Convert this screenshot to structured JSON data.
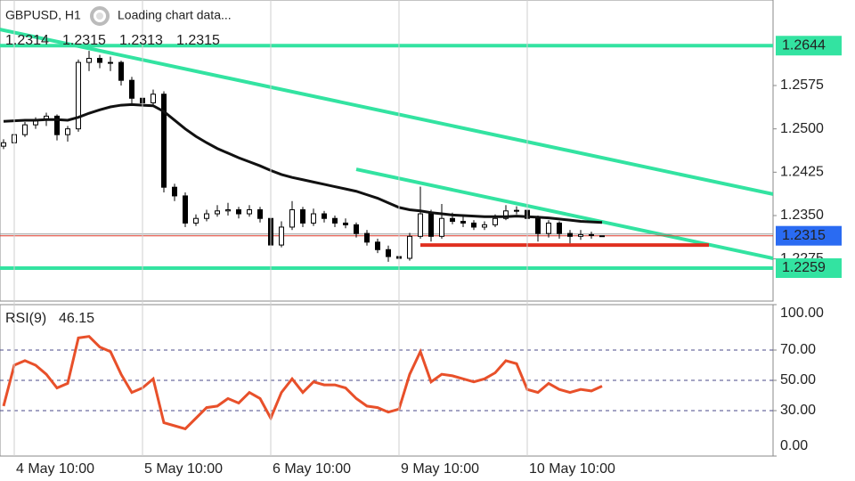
{
  "chart_data": {
    "type": "candlestick",
    "symbol": "GBPUSD, H1",
    "status": "Loading chart data...",
    "xlim": [
      -0.3333,
      72
    ],
    "xticks": [
      {
        "value": 1,
        "label": "4 May 10:00"
      },
      {
        "value": 13,
        "label": "5 May 10:00"
      },
      {
        "value": 25,
        "label": "6 May 10:00"
      },
      {
        "value": 37,
        "label": "9 May 10:00"
      },
      {
        "value": 49,
        "label": "10 May 10:00"
      }
    ],
    "ylim": [
      1.2202,
      1.2723
    ],
    "yticks": [
      1.2575,
      {
        "value": 1.25,
        "label": "1.2500"
      },
      1.2425,
      {
        "value": 1.235,
        "label": "1.2350"
      },
      1.2275
    ],
    "up_color": "#ffffff",
    "down_color": "#000000",
    "candles": [
      [
        1.247,
        1.2482,
        1.2465,
        1.2476
      ],
      [
        1.2476,
        1.2495,
        1.2472,
        1.249
      ],
      [
        1.249,
        1.2512,
        1.2486,
        1.2507
      ],
      [
        1.2507,
        1.252,
        1.25,
        1.2515
      ],
      [
        1.2515,
        1.2528,
        1.2505,
        1.2522
      ],
      [
        1.2522,
        1.2525,
        1.248,
        1.249
      ],
      [
        1.249,
        1.2505,
        1.2478,
        1.25
      ],
      [
        1.25,
        1.262,
        1.2495,
        1.2615
      ],
      [
        1.2615,
        1.2635,
        1.26,
        1.2622
      ],
      [
        1.2622,
        1.2628,
        1.2605,
        1.2615
      ],
      [
        1.2615,
        1.2625,
        1.26,
        1.2615
      ],
      [
        1.2615,
        1.2618,
        1.2575,
        1.2584
      ],
      [
        1.2584,
        1.259,
        1.254,
        1.2553
      ],
      [
        1.2553,
        1.256,
        1.2535,
        1.2545
      ],
      [
        1.2545,
        1.2568,
        1.254,
        1.256
      ],
      [
        1.256,
        1.2565,
        1.239,
        1.2399
      ],
      [
        1.2399,
        1.2405,
        1.2375,
        1.2384
      ],
      [
        1.2384,
        1.239,
        1.233,
        1.2337
      ],
      [
        1.2337,
        1.2352,
        1.2332,
        1.2345
      ],
      [
        1.2345,
        1.236,
        1.234,
        1.2353
      ],
      [
        1.2353,
        1.2368,
        1.2348,
        1.2358
      ],
      [
        1.2358,
        1.2372,
        1.235,
        1.236
      ],
      [
        1.236,
        1.2365,
        1.2345,
        1.2353
      ],
      [
        1.2353,
        1.2368,
        1.2348,
        1.236
      ],
      [
        1.236,
        1.2365,
        1.2338,
        1.2345
      ],
      [
        1.2345,
        1.235,
        1.2275,
        1.2299
      ],
      [
        1.2299,
        1.234,
        1.2295,
        1.233
      ],
      [
        1.233,
        1.2375,
        1.2325,
        1.236
      ],
      [
        1.236,
        1.2365,
        1.233,
        1.2337
      ],
      [
        1.2337,
        1.2362,
        1.2332,
        1.2353
      ],
      [
        1.2353,
        1.2358,
        1.2338,
        1.2345
      ],
      [
        1.2345,
        1.235,
        1.233,
        1.2337
      ],
      [
        1.2337,
        1.2345,
        1.2328,
        1.2334
      ],
      [
        1.2334,
        1.2338,
        1.2312,
        1.2319
      ],
      [
        1.2319,
        1.2325,
        1.2298,
        1.2304
      ],
      [
        1.2304,
        1.231,
        1.2285,
        1.2291
      ],
      [
        1.2291,
        1.2298,
        1.227,
        1.2279
      ],
      [
        1.2279,
        1.229,
        1.2268,
        1.2276
      ],
      [
        1.2276,
        1.232,
        1.2272,
        1.2314
      ],
      [
        1.2314,
        1.24,
        1.231,
        1.2353
      ],
      [
        1.2353,
        1.236,
        1.2305,
        1.2314
      ],
      [
        1.2314,
        1.237,
        1.231,
        1.2345
      ],
      [
        1.2345,
        1.2355,
        1.2335,
        1.234
      ],
      [
        1.234,
        1.2348,
        1.233,
        1.2337
      ],
      [
        1.2337,
        1.2342,
        1.2325,
        1.233
      ],
      [
        1.233,
        1.234,
        1.2325,
        1.2334
      ],
      [
        1.2334,
        1.2352,
        1.233,
        1.2345
      ],
      [
        1.2345,
        1.2368,
        1.2342,
        1.2358
      ],
      [
        1.2358,
        1.2366,
        1.2352,
        1.2359
      ],
      [
        1.2359,
        1.2362,
        1.23,
        1.2345
      ],
      [
        1.2345,
        1.235,
        1.2305,
        1.2319
      ],
      [
        1.2319,
        1.2342,
        1.2312,
        1.2337
      ],
      [
        1.2337,
        1.234,
        1.231,
        1.2319
      ],
      [
        1.2319,
        1.2325,
        1.2302,
        1.2314
      ],
      [
        1.2314,
        1.2325,
        1.2308,
        1.2317
      ],
      [
        1.2317,
        1.2322,
        1.231,
        1.2316
      ],
      [
        1.2314,
        1.2315,
        1.2313,
        1.2315
      ]
    ],
    "ma": {
      "color": "#111111",
      "values": [
        1.2513,
        1.2514,
        1.2515,
        1.2515,
        1.2516,
        1.2516,
        1.2515,
        1.252,
        1.2527,
        1.2533,
        1.2538,
        1.2541,
        1.2542,
        1.2541,
        1.254,
        1.253,
        1.2515,
        1.25,
        1.2487,
        1.2476,
        1.2466,
        1.2458,
        1.245,
        1.2443,
        1.2436,
        1.2428,
        1.2421,
        1.2416,
        1.2412,
        1.2408,
        1.2404,
        1.24,
        1.2396,
        1.2392,
        1.2386,
        1.238,
        1.2372,
        1.2364,
        1.236,
        1.2358,
        1.2355,
        1.2353,
        1.2351,
        1.235,
        1.2349,
        1.2348,
        1.2348,
        1.2348,
        1.2349,
        1.2348,
        1.2347,
        1.2346,
        1.2344,
        1.2342,
        1.234,
        1.2339,
        1.2338
      ]
    },
    "price_levels": [
      {
        "value": 1.2644,
        "color": "#33e3a1"
      },
      {
        "value": 1.2259,
        "color": "#33e3a1"
      }
    ],
    "current_price_color": "#2a6bf2",
    "bid_line_color": "#e03a2a",
    "trendlines": [
      {
        "color": "#33e3a1",
        "points": [
          [
            -0.3333,
            1.2672
          ],
          [
            72,
            1.2387
          ]
        ]
      },
      {
        "color": "#33e3a1",
        "points": [
          [
            33,
            1.243
          ],
          [
            72,
            1.2276
          ]
        ]
      },
      {
        "color": "#e03020",
        "points": [
          [
            39,
            1.2299
          ],
          [
            66,
            1.2299
          ]
        ]
      }
    ],
    "rsi": {
      "name": "RSI(9)",
      "color": "#e8502a",
      "ylim": [
        0,
        100
      ],
      "yticks": [
        {
          "value": 100,
          "label": "100.00"
        },
        {
          "value": 70,
          "label": "70.00"
        },
        {
          "value": 50,
          "label": "50.00"
        },
        {
          "value": 30,
          "label": "30.00"
        },
        {
          "value": 0,
          "label": "0.00"
        }
      ],
      "levels": [
        70,
        50,
        30
      ],
      "values": [
        33,
        60,
        63,
        60,
        54,
        45,
        48,
        78,
        79,
        72,
        69,
        54,
        42,
        45,
        51,
        22,
        20,
        18,
        25,
        32,
        33,
        38,
        35,
        42,
        38,
        25,
        42,
        51,
        42,
        49,
        47,
        47,
        45,
        38,
        33,
        32,
        29,
        31,
        54,
        69,
        49,
        54,
        53,
        51,
        49,
        51,
        55,
        63,
        61,
        44,
        42,
        48,
        44,
        42,
        44,
        43,
        46.15
      ]
    }
  }
}
